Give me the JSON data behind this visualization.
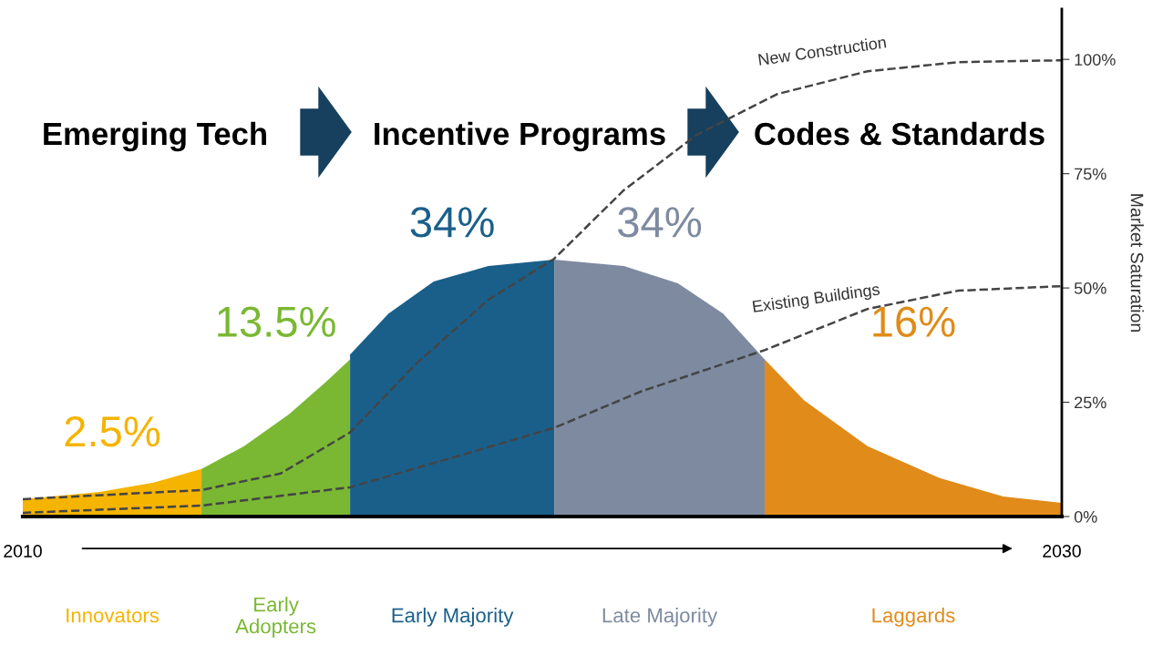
{
  "chart_data": {
    "type": "area",
    "ylabel": "Market Saturation",
    "xlim": [
      2010,
      2030
    ],
    "xticks": [
      2010,
      2030
    ],
    "ylim": [
      0,
      111
    ],
    "yticks": [
      {
        "value": 0,
        "label": "0%"
      },
      {
        "value": 25,
        "label": "25%"
      },
      {
        "value": 50,
        "label": "50%"
      },
      {
        "value": 75,
        "label": "75%"
      },
      {
        "value": 100,
        "label": "100%"
      }
    ],
    "series": [
      {
        "name": "Innovators",
        "color": "#f5b400",
        "x": [
          2010,
          2011.48,
          2012.52,
          2013.44
        ],
        "values": [
          3.8,
          5.4,
          7.4,
          10.4
        ]
      },
      {
        "name": "Early\nAdopters",
        "color": "#7ab833",
        "x": [
          2013.44,
          2014.26,
          2015.13,
          2015.83,
          2016.3
        ],
        "values": [
          10.4,
          15.4,
          22.4,
          29.4,
          34.4
        ]
      },
      {
        "name": "Early Majority",
        "color": "#1a5f8a",
        "x": [
          2016.3,
          2017.04,
          2017.91,
          2018.96,
          2020.23
        ],
        "values": [
          35.4,
          44.4,
          51.4,
          54.8,
          56.2
        ]
      },
      {
        "name": "Late Majority",
        "color": "#7d8aa0",
        "x": [
          2020.23,
          2021.57,
          2022.61,
          2023.48,
          2024.28
        ],
        "values": [
          56.2,
          54.8,
          51,
          44.4,
          34.4
        ]
      },
      {
        "name": "Laggards",
        "color": "#e08b1a",
        "x": [
          2024.28,
          2025.04,
          2026.26,
          2027.65,
          2028.87,
          2030
        ],
        "values": [
          34.4,
          25.4,
          15.4,
          8.4,
          4.4,
          3
        ]
      },
      {
        "name": "New Construction",
        "type": "line",
        "line_style": "dashed",
        "color": "#444444",
        "x": [
          2010,
          2013.44,
          2014.96,
          2016.3,
          2017.57,
          2018.96,
          2020.23,
          2021.57,
          2022.96,
          2024.52,
          2026.26,
          2028,
          2030
        ],
        "values": [
          3.8,
          5.8,
          9.4,
          18.4,
          33.4,
          47.4,
          56.4,
          71.4,
          83.4,
          92.4,
          97.4,
          99.4,
          99.8
        ]
      },
      {
        "name": "Existing Buildings",
        "type": "line",
        "line_style": "dashed",
        "color": "#444444",
        "x": [
          2010,
          2013.44,
          2016.3,
          2018.43,
          2020.23,
          2021.91,
          2024.28,
          2026.26,
          2028,
          2030
        ],
        "values": [
          0.8,
          2.4,
          6.4,
          13.4,
          19.4,
          27.4,
          36.4,
          45.4,
          49.4,
          50.4
        ]
      }
    ],
    "annotations": [
      "2.5%",
      "13.5%",
      "34%",
      "34%",
      "16%",
      "Emerging Tech",
      "Incentive Programs",
      "Codes & Standards"
    ]
  }
}
